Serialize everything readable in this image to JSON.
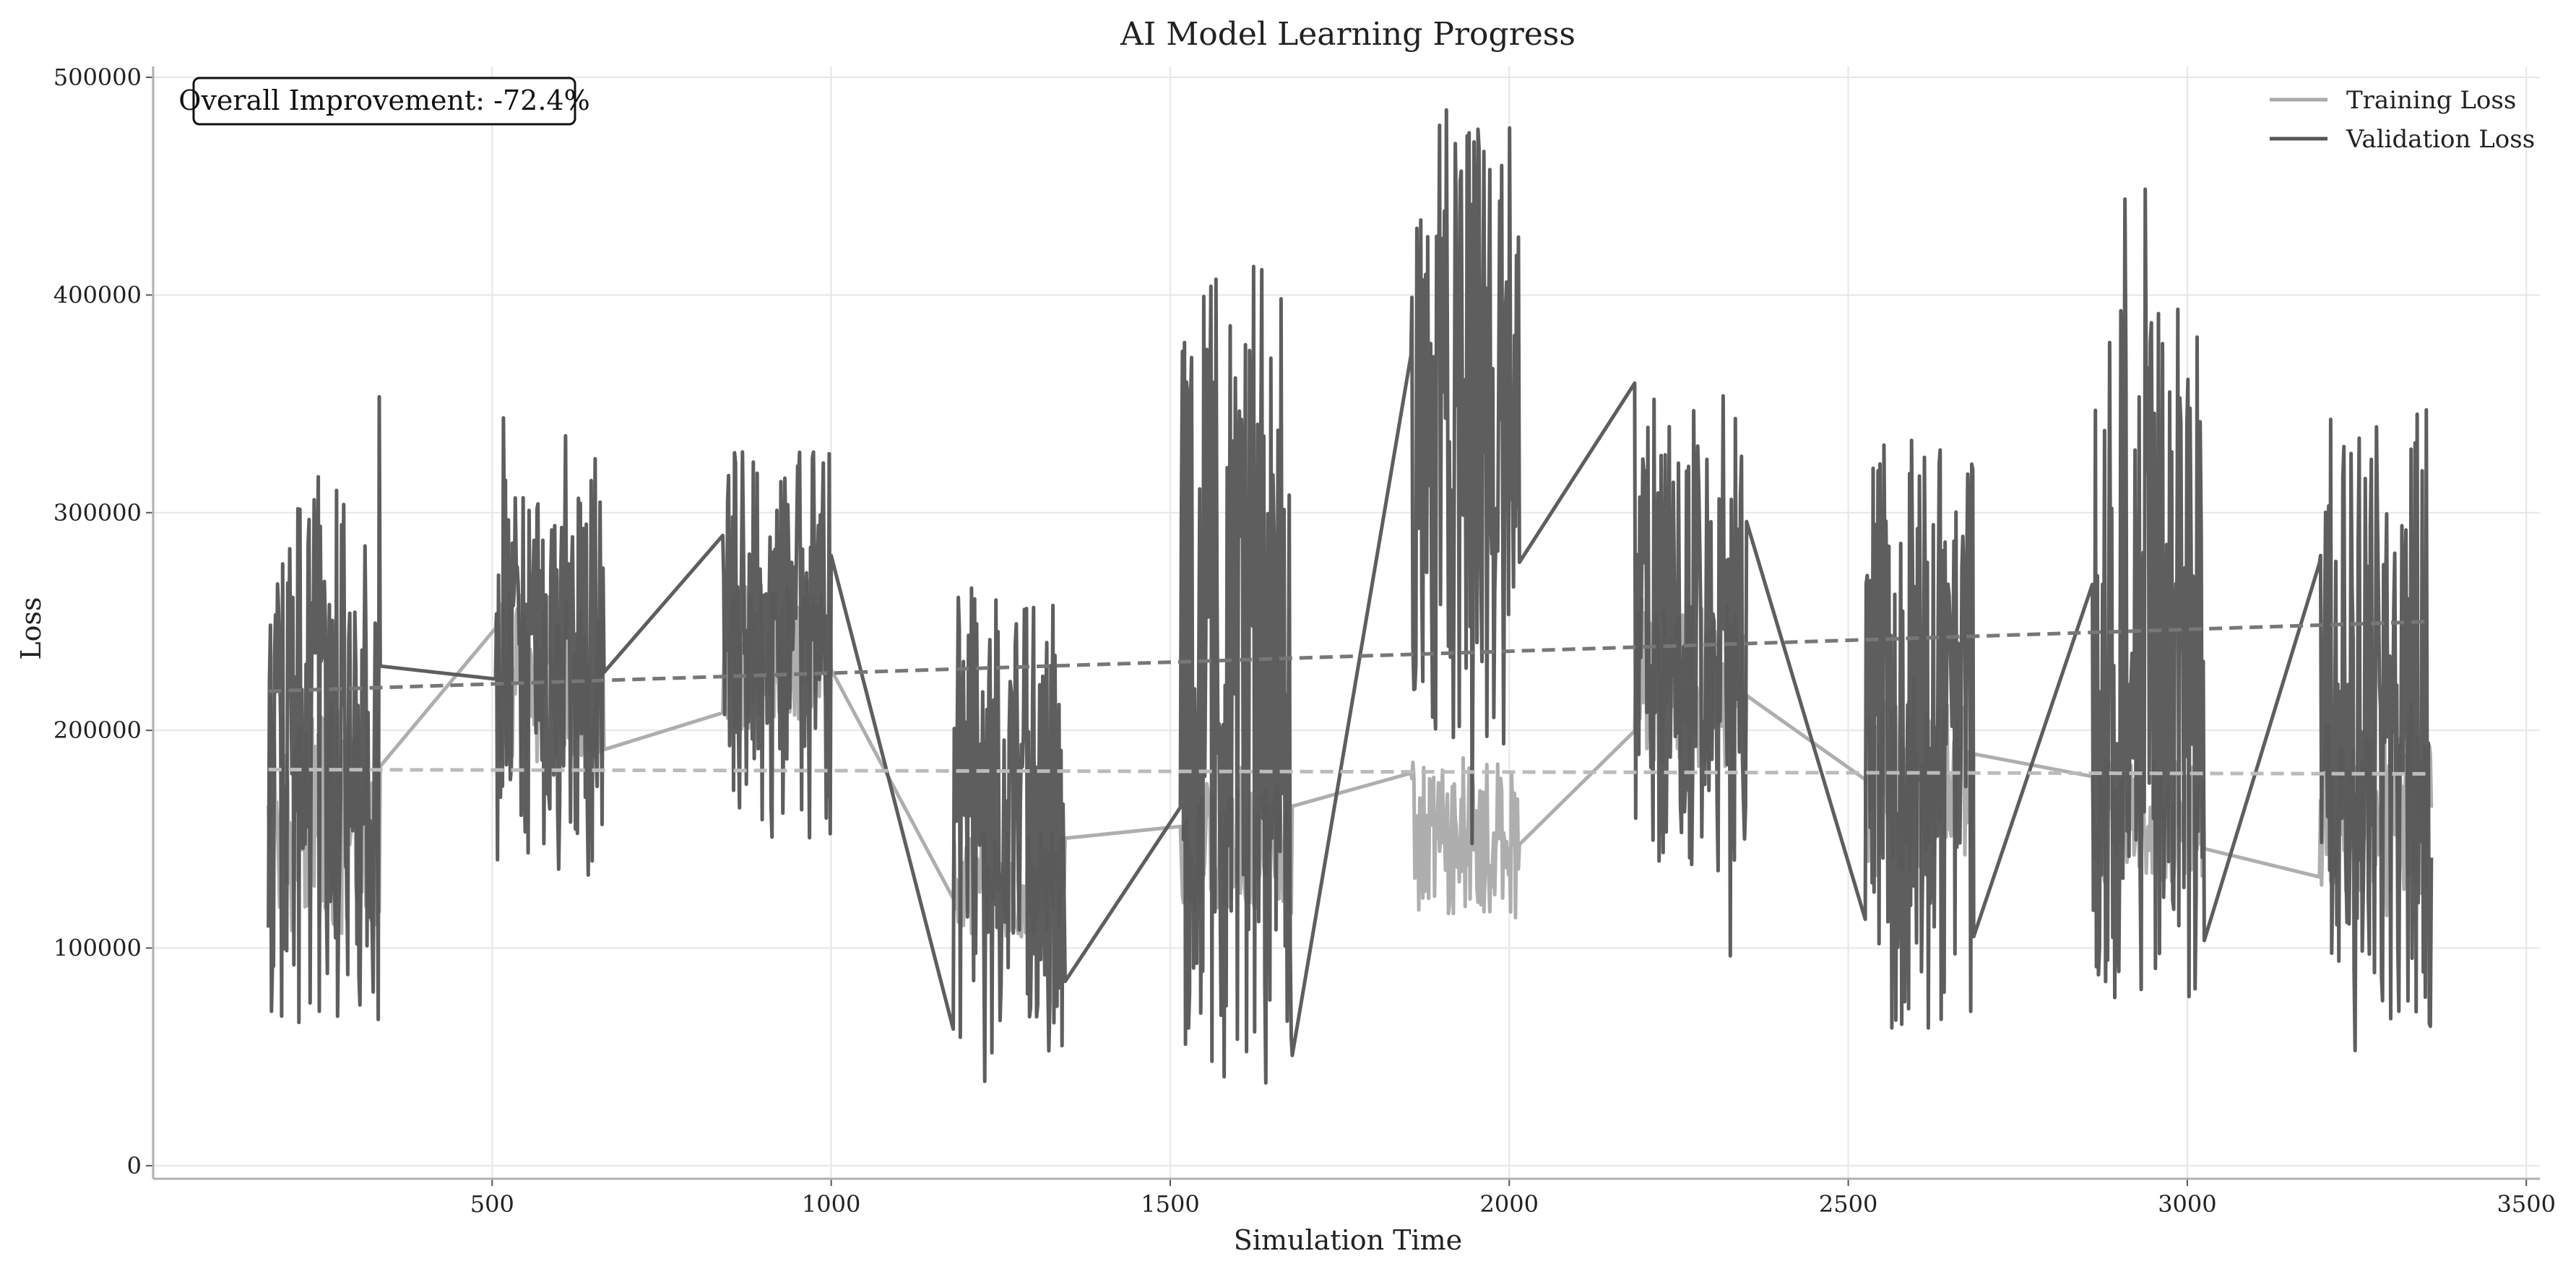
{
  "chart_data": {
    "type": "line",
    "title": "AI Model Learning Progress",
    "xlabel": "Simulation Time",
    "ylabel": "Loss",
    "xlim": [
      0,
      3520
    ],
    "ylim": [
      -6000,
      505000
    ],
    "x_ticks": [
      500,
      1000,
      1500,
      2000,
      2500,
      3000,
      3500
    ],
    "y_ticks": [
      0,
      100000,
      200000,
      300000,
      400000,
      500000
    ],
    "grid": true,
    "legend_position": "top-right",
    "annotation": "Overall Improvement: -72.4%",
    "series": [
      {
        "name": "Training Loss",
        "color": "#aaaaaa",
        "segments": [
          {
            "start": 170,
            "end": 335,
            "base": 160000,
            "amp": 55000,
            "seed": 11
          },
          {
            "start": 505,
            "end": 665,
            "base": 225000,
            "amp": 40000,
            "seed": 12
          },
          {
            "start": 840,
            "end": 1000,
            "base": 235000,
            "amp": 35000,
            "seed": 13
          },
          {
            "start": 1180,
            "end": 1345,
            "base": 130000,
            "amp": 25000,
            "seed": 14
          },
          {
            "start": 1515,
            "end": 1680,
            "base": 145000,
            "amp": 30000,
            "seed": 15
          },
          {
            "start": 1855,
            "end": 2015,
            "base": 150000,
            "amp": 35000,
            "seed": 16
          },
          {
            "start": 2185,
            "end": 2350,
            "base": 220000,
            "amp": 40000,
            "seed": 17
          },
          {
            "start": 2525,
            "end": 2685,
            "base": 175000,
            "amp": 40000,
            "seed": 18
          },
          {
            "start": 2860,
            "end": 3025,
            "base": 160000,
            "amp": 30000,
            "seed": 19
          },
          {
            "start": 3195,
            "end": 3360,
            "base": 165000,
            "amp": 40000,
            "seed": 20
          }
        ],
        "trend": {
          "x": [
            170,
            3360
          ],
          "y": [
            182000,
            180000
          ]
        }
      },
      {
        "name": "Validation Loss",
        "color": "#555555",
        "segments": [
          {
            "start": 170,
            "end": 335,
            "base": 185000,
            "amp": 130000,
            "seed": 31
          },
          {
            "start": 505,
            "end": 665,
            "base": 225000,
            "amp": 90000,
            "seed": 32
          },
          {
            "start": 840,
            "end": 1000,
            "base": 240000,
            "amp": 90000,
            "seed": 33
          },
          {
            "start": 1180,
            "end": 1345,
            "base": 160000,
            "amp": 110000,
            "seed": 34
          },
          {
            "start": 1515,
            "end": 1680,
            "base": 225000,
            "amp": 190000,
            "seed": 35
          },
          {
            "start": 1855,
            "end": 2015,
            "base": 335000,
            "amp": 150000,
            "seed": 36
          },
          {
            "start": 2185,
            "end": 2350,
            "base": 245000,
            "amp": 110000,
            "seed": 37
          },
          {
            "start": 2525,
            "end": 2685,
            "base": 200000,
            "amp": 140000,
            "seed": 38
          },
          {
            "start": 2860,
            "end": 3025,
            "base": 235000,
            "amp": 160000,
            "seed": 39
          },
          {
            "start": 3195,
            "end": 3360,
            "base": 200000,
            "amp": 150000,
            "seed": 40
          }
        ],
        "trend": {
          "x": [
            170,
            3360
          ],
          "y": [
            218000,
            250000
          ]
        }
      }
    ]
  }
}
